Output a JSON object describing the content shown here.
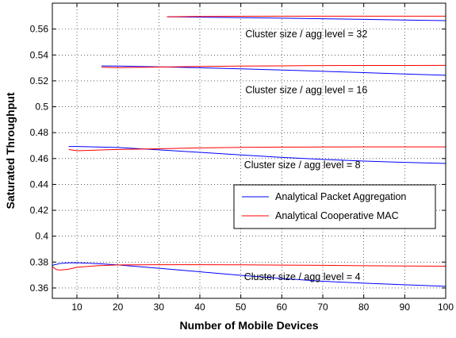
{
  "chart_data": {
    "type": "line",
    "xlabel": "Number of Mobile Devices",
    "ylabel": "Saturated Throughput",
    "xlim": [
      4,
      100
    ],
    "ylim": [
      0.352,
      0.58
    ],
    "xticks": [
      10,
      20,
      30,
      40,
      50,
      60,
      70,
      80,
      90,
      100
    ],
    "xtick_labels": [
      "10",
      "20",
      "30",
      "40",
      "50",
      "60",
      "70",
      "80",
      "90",
      "100"
    ],
    "yticks": [
      0.36,
      0.38,
      0.4,
      0.42,
      0.44,
      0.46,
      0.48,
      0.5,
      0.52,
      0.54,
      0.56
    ],
    "ytick_labels": [
      "0.36",
      "0.38",
      "0.4",
      "0.42",
      "0.44",
      "0.46",
      "0.48",
      "0.5",
      "0.52",
      "0.54",
      "0.56"
    ],
    "grid": true,
    "legend_position": "right",
    "colors": {
      "packet_aggregation": "#0000ff",
      "cooperative_mac": "#ff0000"
    },
    "legend": [
      {
        "label": "Analytical Packet Aggregation",
        "color": "#0000ff"
      },
      {
        "label": "Analytical Cooperative MAC",
        "color": "#ff0000"
      }
    ],
    "annotations": [
      {
        "text": "Cluster size / agg level = 32",
        "x": 66,
        "y": 0.5535
      },
      {
        "text": "Cluster size / agg level = 16",
        "x": 66,
        "y": 0.5105
      },
      {
        "text": "Cluster size / agg level = 8",
        "x": 65,
        "y": 0.4525
      },
      {
        "text": "Cluster size / agg level = 4",
        "x": 65,
        "y": 0.366
      }
    ],
    "series": [
      {
        "name": "Analytical Packet Aggregation",
        "group": "32",
        "color": "#0000ff",
        "x": [
          32,
          40,
          50,
          60,
          70,
          80,
          90,
          100
        ],
        "y": [
          0.5695,
          0.5692,
          0.5688,
          0.5684,
          0.568,
          0.5675,
          0.567,
          0.5665
        ]
      },
      {
        "name": "Analytical Cooperative MAC",
        "group": "32",
        "color": "#ff0000",
        "x": [
          32,
          40,
          50,
          60,
          70,
          80,
          90,
          100
        ],
        "y": [
          0.5695,
          0.5697,
          0.5699,
          0.57,
          0.57,
          0.57,
          0.57,
          0.57
        ]
      },
      {
        "name": "Analytical Packet Aggregation",
        "group": "16",
        "color": "#0000ff",
        "x": [
          16,
          20,
          30,
          40,
          50,
          60,
          70,
          80,
          90,
          100
        ],
        "y": [
          0.5315,
          0.5314,
          0.5308,
          0.5301,
          0.5293,
          0.5284,
          0.5274,
          0.5264,
          0.5253,
          0.5243
        ]
      },
      {
        "name": "Analytical Cooperative MAC",
        "group": "16",
        "color": "#ff0000",
        "x": [
          16,
          20,
          30,
          40,
          50,
          60,
          70,
          80,
          90,
          100
        ],
        "y": [
          0.5305,
          0.5302,
          0.5307,
          0.5311,
          0.5314,
          0.5316,
          0.5318,
          0.5319,
          0.5319,
          0.532
        ]
      },
      {
        "name": "Analytical Packet Aggregation",
        "group": "8",
        "color": "#0000ff",
        "x": [
          8,
          10,
          20,
          30,
          40,
          50,
          60,
          70,
          80,
          90,
          100
        ],
        "y": [
          0.4693,
          0.4693,
          0.4685,
          0.4667,
          0.4648,
          0.4628,
          0.4609,
          0.4593,
          0.458,
          0.457,
          0.4562
        ]
      },
      {
        "name": "Analytical Cooperative MAC",
        "group": "8",
        "color": "#ff0000",
        "x": [
          8,
          10,
          20,
          30,
          40,
          50,
          60,
          70,
          80,
          90,
          100
        ],
        "y": [
          0.467,
          0.466,
          0.467,
          0.4675,
          0.4682,
          0.4686,
          0.4688,
          0.4689,
          0.469,
          0.469,
          0.469
        ]
      },
      {
        "name": "Analytical Packet Aggregation",
        "group": "4",
        "color": "#0000ff",
        "x": [
          4,
          6,
          8,
          10,
          15,
          20,
          30,
          40,
          50,
          60,
          70,
          80,
          90,
          100
        ],
        "y": [
          0.3775,
          0.379,
          0.3794,
          0.3795,
          0.3788,
          0.3778,
          0.3752,
          0.3725,
          0.3698,
          0.3673,
          0.3652,
          0.3637,
          0.3625,
          0.3613
        ]
      },
      {
        "name": "Analytical Cooperative MAC",
        "group": "4",
        "color": "#ff0000",
        "x": [
          4,
          5,
          6,
          8,
          10,
          15,
          20,
          30,
          40,
          50,
          60,
          70,
          80,
          90,
          100
        ],
        "y": [
          0.3765,
          0.3742,
          0.3738,
          0.3745,
          0.376,
          0.3772,
          0.3778,
          0.378,
          0.378,
          0.3779,
          0.3777,
          0.3775,
          0.3772,
          0.377,
          0.3768
        ]
      }
    ]
  }
}
